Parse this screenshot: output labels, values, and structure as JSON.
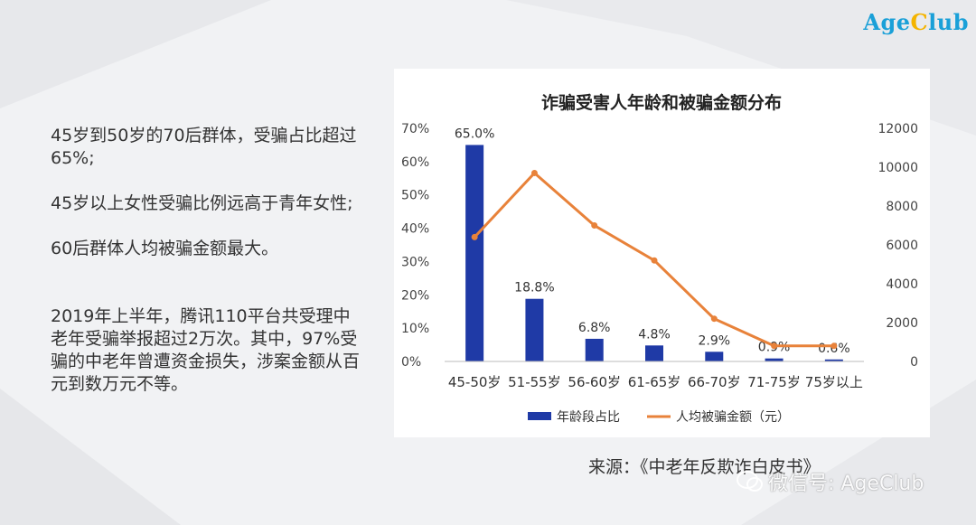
{
  "logo": {
    "part1": "Age",
    "part2": "C",
    "part3": "lub"
  },
  "notes": {
    "p1": "45岁到50岁的70后群体，受骗占比超过65%;",
    "p2": "45岁以上女性受骗比例远高于青年女性;",
    "p3": "60后群体人均被骗金额最大。",
    "p4": "2019年上半年，腾讯110平台共受理中老年受骗举报超过2万次。其中，97%受骗的中老年曾遭资金损失，涉案金额从百元到数万元不等。"
  },
  "source": "来源：《中老年反欺诈白皮书》",
  "watermark": "微信号: AgeClub",
  "colors": {
    "bar": "#1f3aa6",
    "line": "#e8823a",
    "logo_blue": "#1aa0d8",
    "logo_yellow": "#f4b400"
  },
  "chart_data": {
    "type": "bar+line",
    "title": "诈骗受害人年龄和被骗金额分布",
    "categories": [
      "45-50岁",
      "51-55岁",
      "56-60岁",
      "61-65岁",
      "66-70岁",
      "71-75岁",
      "75岁以上"
    ],
    "series": [
      {
        "name": "年龄段占比",
        "type": "bar",
        "axis": "left",
        "values": [
          65.0,
          18.8,
          6.8,
          4.8,
          2.9,
          0.9,
          0.6
        ],
        "labels": [
          "65.0%",
          "18.8%",
          "6.8%",
          "4.8%",
          "2.9%",
          "0.9%",
          "0.6%"
        ]
      },
      {
        "name": "人均被骗金额（元）",
        "type": "line",
        "axis": "right",
        "values": [
          6400,
          9700,
          7000,
          5200,
          2200,
          800,
          800
        ]
      }
    ],
    "left_axis": {
      "ticks": [
        0,
        10,
        20,
        30,
        40,
        50,
        60,
        70
      ],
      "tick_labels": [
        "0%",
        "10%",
        "20%",
        "30%",
        "40%",
        "50%",
        "60%",
        "70%"
      ],
      "ylim": [
        0,
        70
      ]
    },
    "right_axis": {
      "ticks": [
        0,
        2000,
        4000,
        6000,
        8000,
        10000,
        12000
      ],
      "tick_labels": [
        "0",
        "2000",
        "4000",
        "6000",
        "8000",
        "10000",
        "12000"
      ],
      "ylim": [
        0,
        12000
      ]
    },
    "legend_position": "bottom"
  }
}
